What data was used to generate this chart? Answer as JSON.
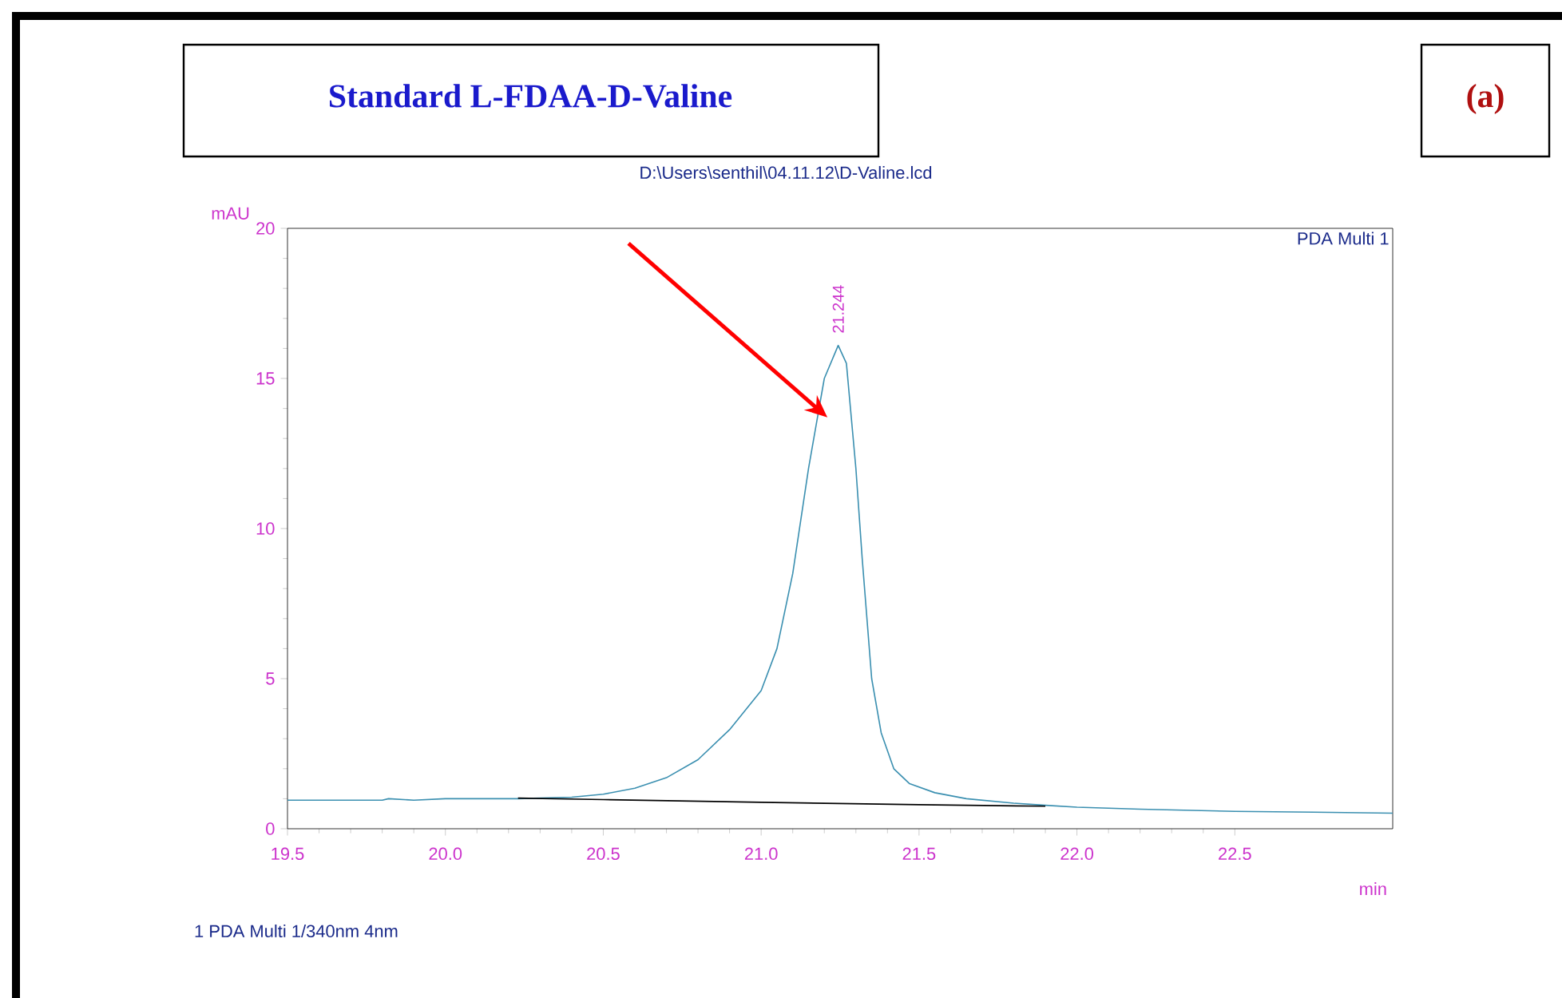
{
  "chart_data": {
    "type": "line",
    "title": "Standard L-FDAA-D-Valine",
    "subtitle": "D:\\Users\\senthil\\04.11.12\\D-Valine.lcd",
    "xlabel": "min",
    "ylabel": "mAU",
    "annotations": [
      "(a)",
      {
        "text": "21.244",
        "x": 21.244,
        "y": 16.1
      },
      "PDA Multi 1",
      "1  PDA Multi 1/340nm 4nm"
    ],
    "xlim": [
      19.5,
      23.0
    ],
    "ylim": [
      0,
      20
    ],
    "xticks": [
      19.5,
      {
        "value": 20,
        "label": "20.0"
      },
      20.5,
      {
        "value": 21,
        "label": "21.0"
      },
      21.5,
      {
        "value": 22,
        "label": "22.0"
      },
      22.5
    ],
    "yticks": [
      0,
      5,
      10,
      15,
      20
    ],
    "grid": false,
    "marker": "none",
    "line_style": "solid",
    "series": [
      {
        "color": "#3a8fb0",
        "x": [
          19.5,
          19.8,
          19.82,
          19.9,
          20.0,
          20.23,
          20.4,
          20.5,
          20.6,
          20.7,
          20.8,
          20.9,
          21.0,
          21.05,
          21.1,
          21.15,
          21.2,
          21.244,
          21.27,
          21.3,
          21.32,
          21.35,
          21.38,
          21.42,
          21.47,
          21.55,
          21.65,
          21.8,
          21.9,
          22.0,
          22.2,
          22.5,
          22.75,
          23.0
        ],
        "values": [
          0.95,
          0.95,
          1.0,
          0.95,
          1.0,
          1.0,
          1.05,
          1.15,
          1.35,
          1.7,
          2.3,
          3.3,
          4.6,
          6.0,
          8.5,
          12.0,
          15.0,
          16.1,
          15.5,
          12.0,
          9.0,
          5.0,
          3.2,
          2.0,
          1.5,
          1.2,
          1.0,
          0.85,
          0.78,
          0.72,
          0.65,
          0.58,
          0.55,
          0.52
        ]
      },
      {
        "color": "#000000",
        "x": [
          20.23,
          20.5,
          21.0,
          21.5,
          21.9
        ],
        "values": [
          1.02,
          0.97,
          0.88,
          0.8,
          0.75
        ]
      }
    ]
  }
}
